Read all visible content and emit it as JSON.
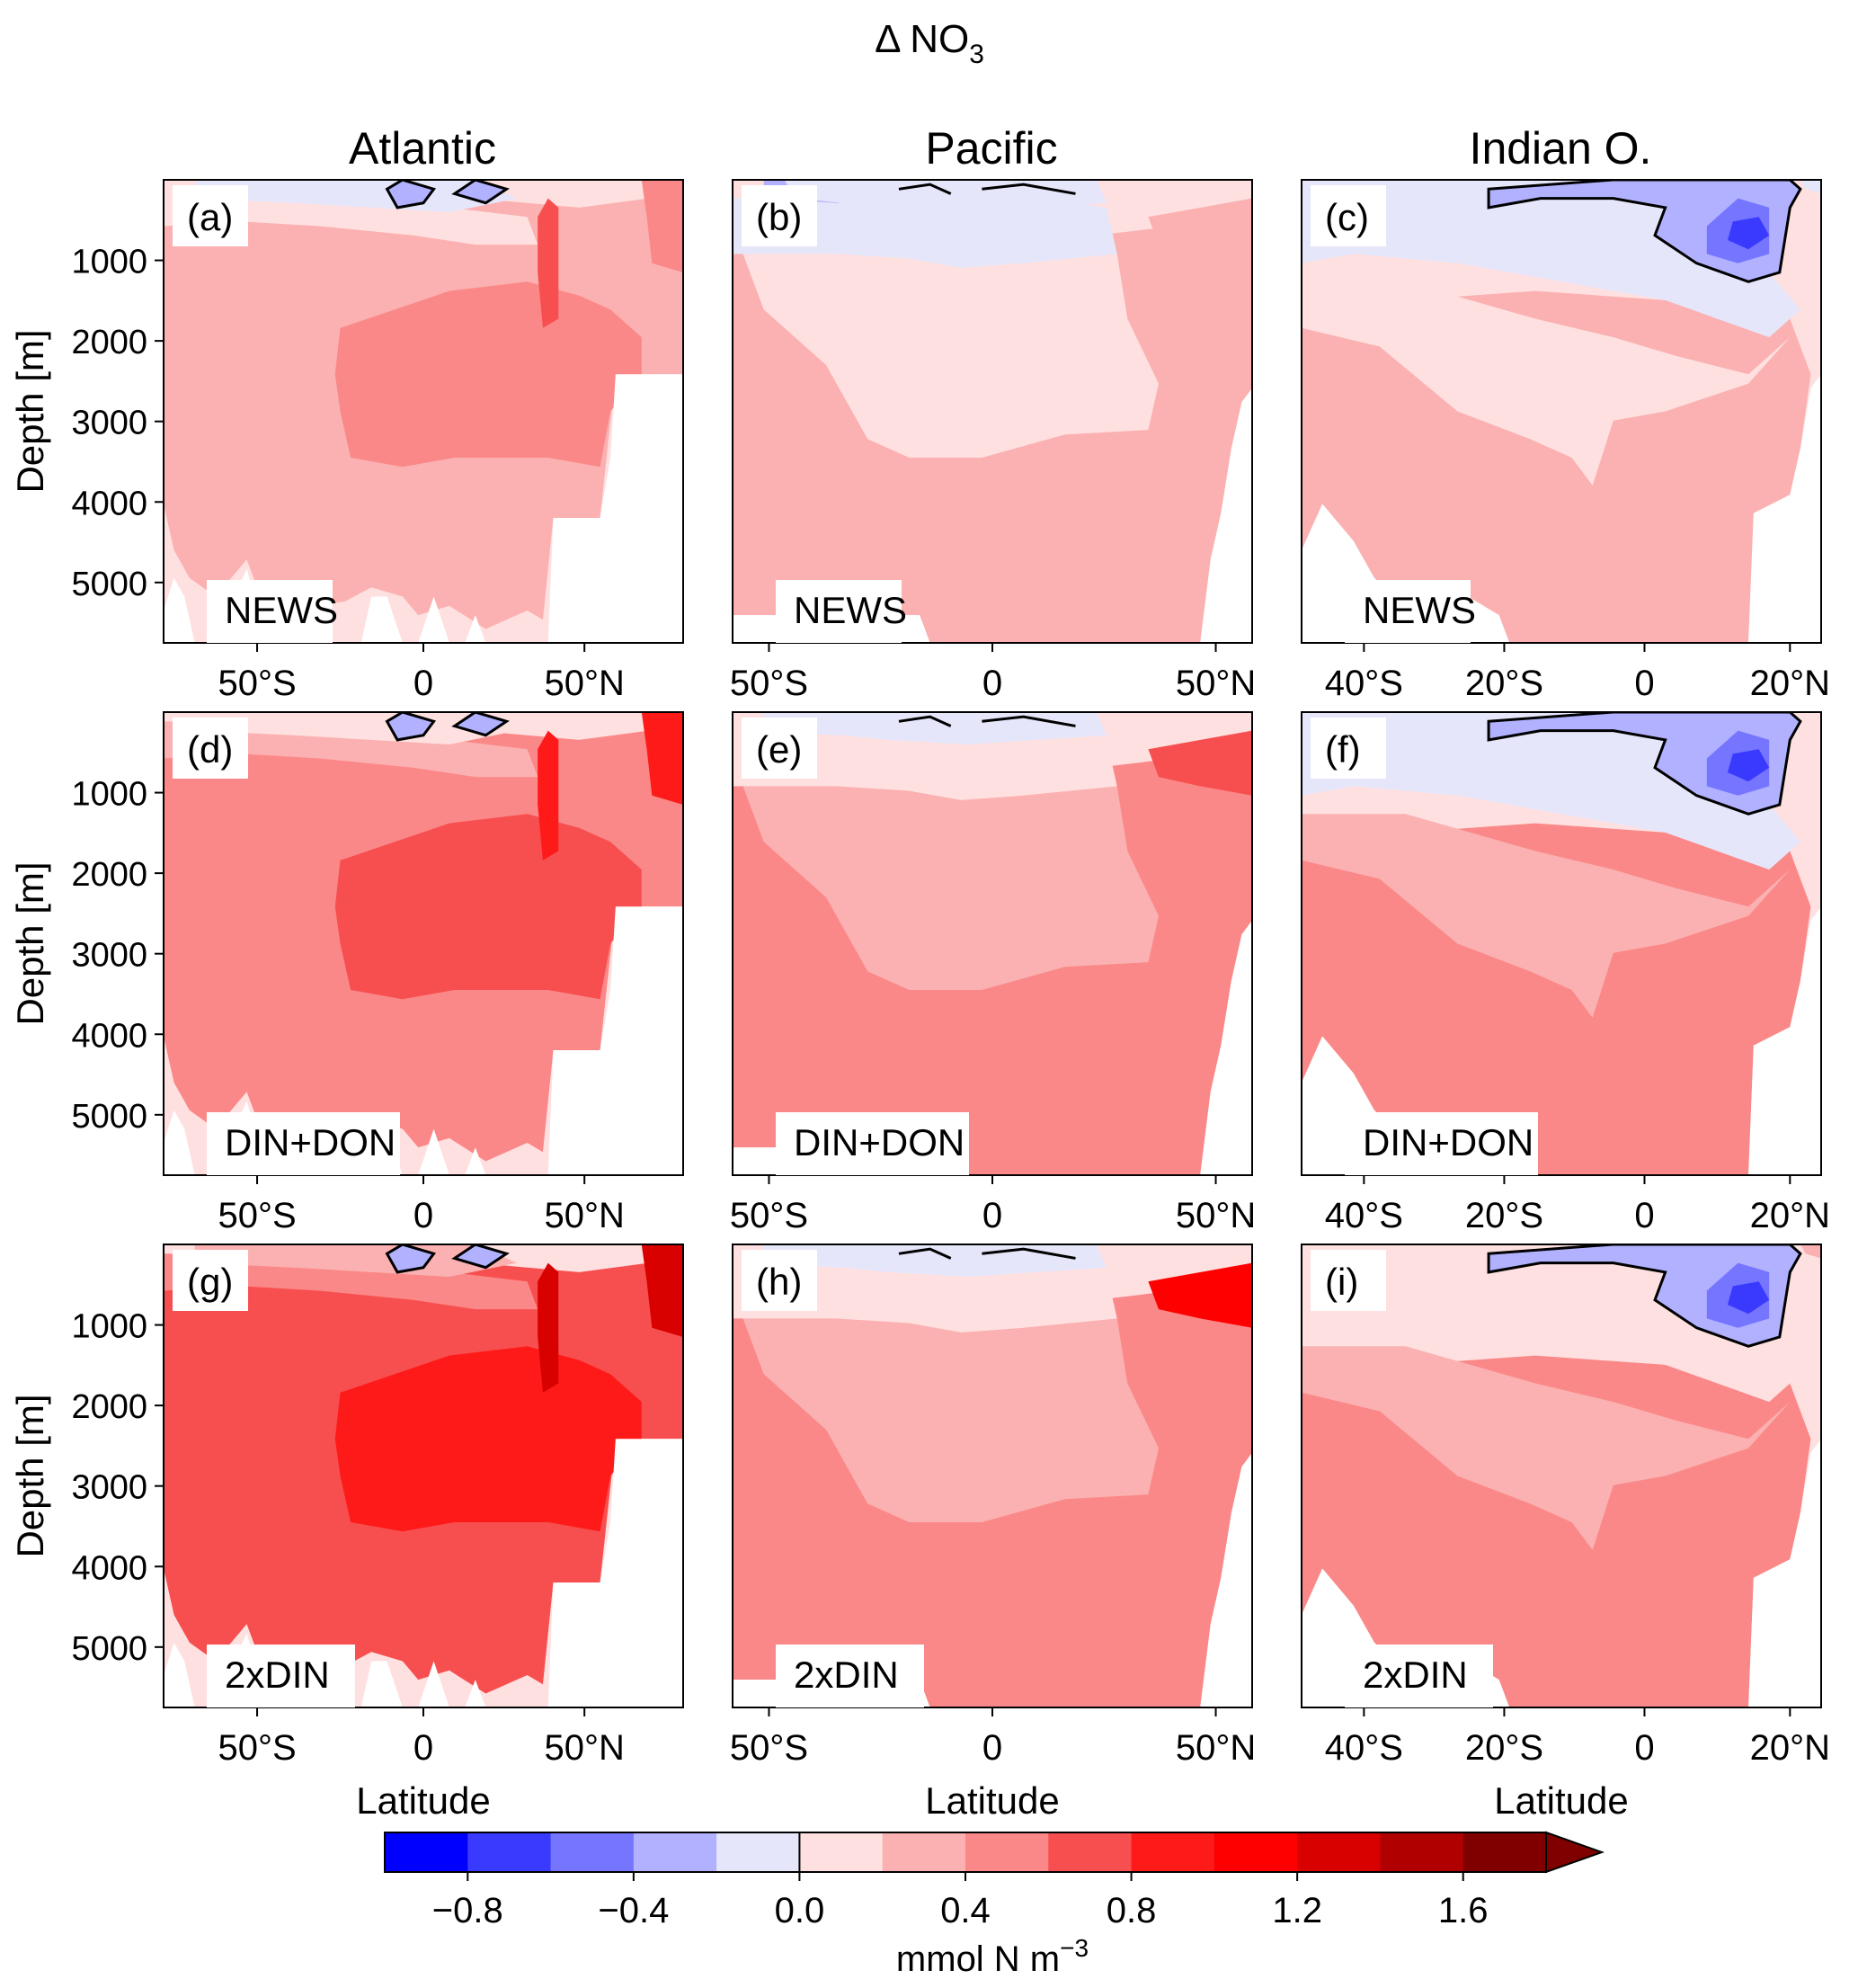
{
  "figure": {
    "title": "Δ NO",
    "title_sub": "3",
    "columns": [
      "Atlantic",
      "Pacific",
      "Indian O."
    ],
    "ylabel": "Depth [m]",
    "xlabel": "Latitude"
  },
  "chart_data": [
    {
      "type": "heatmap",
      "panel": "(a)",
      "label": "NEWS",
      "basin": "Atlantic",
      "ocean": "atl",
      "level": 0
    },
    {
      "type": "heatmap",
      "panel": "(b)",
      "label": "NEWS",
      "basin": "Pacific",
      "ocean": "pac",
      "level": 0
    },
    {
      "type": "heatmap",
      "panel": "(c)",
      "label": "NEWS",
      "basin": "Indian O.",
      "ocean": "ind",
      "level": 0
    },
    {
      "type": "heatmap",
      "panel": "(d)",
      "label": "DIN+DON",
      "basin": "Atlantic",
      "ocean": "atl",
      "level": 1
    },
    {
      "type": "heatmap",
      "panel": "(e)",
      "label": "DIN+DON",
      "basin": "Pacific",
      "ocean": "pac",
      "level": 1
    },
    {
      "type": "heatmap",
      "panel": "(f)",
      "label": "DIN+DON",
      "basin": "Indian O.",
      "ocean": "ind",
      "level": 1
    },
    {
      "type": "heatmap",
      "panel": "(g)",
      "label": "2xDIN",
      "basin": "Atlantic",
      "ocean": "atl",
      "level": 2
    },
    {
      "type": "heatmap",
      "panel": "(h)",
      "label": "2xDIN",
      "basin": "Pacific",
      "ocean": "pac",
      "level": 2
    },
    {
      "type": "heatmap",
      "panel": "(i)",
      "label": "2xDIN",
      "basin": "Indian O.",
      "ocean": "ind",
      "level": 2
    }
  ],
  "axes": {
    "y_ticks": [
      "1000",
      "2000",
      "3000",
      "4000",
      "5000"
    ],
    "y_range": [
      0,
      5750
    ],
    "x_ticks": {
      "atl": [
        "50°S",
        "0",
        "50°N"
      ],
      "pac": [
        "50°S",
        "0",
        "50°N"
      ],
      "ind": [
        "40°S",
        "20°S",
        "0",
        "20°N"
      ]
    }
  },
  "colorbar": {
    "label": "mmol N m",
    "label_sup": "−3",
    "ticks": [
      "−0.8",
      "−0.4",
      "0.0",
      "0.4",
      "0.8",
      "1.2",
      "1.6"
    ],
    "range": [
      -1.0,
      1.8
    ],
    "extend": "max",
    "colors": [
      "#0000ff",
      "#3a3aff",
      "#7575ff",
      "#b1b1ff",
      "#e6e6fb",
      "#ffe0e0",
      "#fbb1b1",
      "#fb8888",
      "#f74f4f",
      "#ff1a1a",
      "#ff0000",
      "#d90000",
      "#b00000",
      "#800000"
    ]
  }
}
